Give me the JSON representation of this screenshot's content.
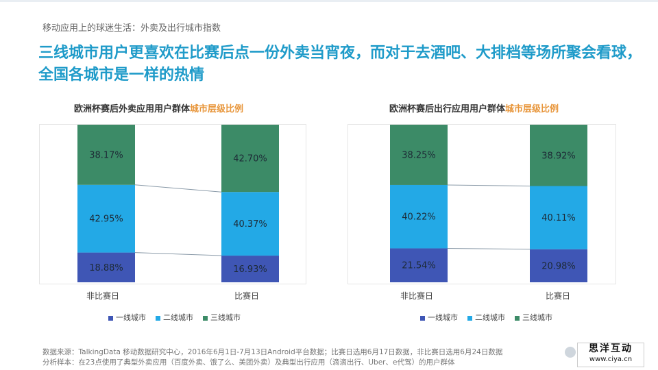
{
  "page": {
    "breadcrumb": "移动应用上的球迷生活：外卖及出行城市指数",
    "headline": "三线城市用户更喜欢在比赛后点一份外卖当宵夜，而对于去酒吧、大排档等场所聚会看球，全国各城市是一样的热情",
    "legend": [
      "一线城市",
      "二线城市",
      "三线城市"
    ],
    "footnote1": "数据来源：TalkingData 移动数据研究中心，2016年6月1日-7月13日Android平台数据；比赛日选用6月17日数据，非比赛日选用6月24日数据",
    "footnote2": "分析样本：在23点使用了典型外卖应用（百度外卖、饿了么、美团外卖）及典型出行应用（滴滴出行、Uber、e代驾）的用户群体",
    "logo_line1": "思洋互动",
    "logo_line2": "www.ciya.cn"
  },
  "colors": {
    "tier1": "#3f56b5",
    "tier2": "#23a9e6",
    "tier3": "#3c8b67",
    "headline": "#1f9bc9",
    "title_highlight": "#e8963b"
  },
  "chart_data": [
    {
      "type": "bar",
      "stacked": true,
      "title": "欧洲杯赛后外卖应用用户群体",
      "title_highlight": "城市层级比例",
      "categories": [
        "非比赛日",
        "比赛日"
      ],
      "series": [
        {
          "name": "一线城市",
          "values": [
            18.88,
            16.93
          ],
          "labels": [
            "18.88%",
            "16.93%"
          ]
        },
        {
          "name": "二线城市",
          "values": [
            42.95,
            40.37
          ],
          "labels": [
            "42.95%",
            "40.37%"
          ]
        },
        {
          "name": "三线城市",
          "values": [
            38.17,
            42.7
          ],
          "labels": [
            "38.17%",
            "42.70%"
          ]
        }
      ],
      "ylim": [
        0,
        100
      ],
      "legend_position": "bottom"
    },
    {
      "type": "bar",
      "stacked": true,
      "title": "欧洲杯赛后出行应用用户群体",
      "title_highlight": "城市层级比例",
      "categories": [
        "非比赛日",
        "比赛日"
      ],
      "series": [
        {
          "name": "一线城市",
          "values": [
            21.54,
            20.98
          ],
          "labels": [
            "21.54%",
            "20.98%"
          ]
        },
        {
          "name": "二线城市",
          "values": [
            40.22,
            40.11
          ],
          "labels": [
            "40.22%",
            "40.11%"
          ]
        },
        {
          "name": "三线城市",
          "values": [
            38.25,
            38.92
          ],
          "labels": [
            "38.25%",
            "38.92%"
          ]
        }
      ],
      "ylim": [
        0,
        100
      ],
      "legend_position": "bottom"
    }
  ]
}
